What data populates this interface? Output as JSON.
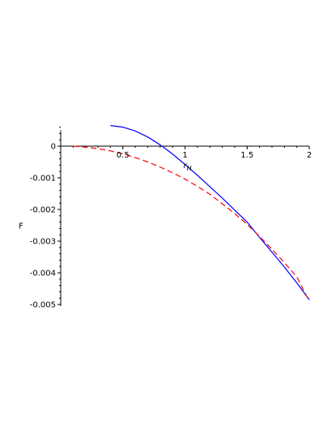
{
  "chart_data": {
    "type": "line",
    "title": "",
    "xlabel": "r",
    "xlabel_sub": "H",
    "ylabel": "F",
    "xlim": [
      0,
      2
    ],
    "ylim": [
      -0.005,
      0.0006
    ],
    "grid": false,
    "legend": "none",
    "x_ticks": [
      {
        "value": 0.5,
        "label": "0.5"
      },
      {
        "value": 1,
        "label": "1"
      },
      {
        "value": 1.5,
        "label": "1.5"
      },
      {
        "value": 2,
        "label": "2"
      }
    ],
    "y_ticks": [
      {
        "value": 0,
        "label": "0"
      },
      {
        "value": -0.001,
        "label": "-0.001"
      },
      {
        "value": -0.002,
        "label": "-0.002"
      },
      {
        "value": -0.003,
        "label": "-0.003"
      },
      {
        "value": -0.004,
        "label": "-0.004"
      },
      {
        "value": -0.005,
        "label": "-0.005"
      }
    ],
    "series": [
      {
        "color": "#0000ff",
        "style": "solid",
        "x": [
          0.4,
          0.5,
          0.6,
          0.7,
          0.8,
          0.85,
          0.9,
          1.0,
          1.1,
          1.2,
          1.3,
          1.4,
          1.5,
          1.6,
          1.7,
          1.8,
          1.9,
          2.0
        ],
        "y": [
          0.00065,
          0.0006,
          0.00048,
          0.00029,
          4e-05,
          -0.0001,
          -0.00025,
          -0.00058,
          -0.00092,
          -0.00128,
          -0.00164,
          -0.00202,
          -0.0024,
          -0.00288,
          -0.00335,
          -0.00382,
          -0.00432,
          -0.00485
        ]
      },
      {
        "color": "#ff0000",
        "style": "dashed",
        "x": [
          0.1,
          0.2,
          0.3,
          0.4,
          0.5,
          0.6,
          0.7,
          0.8,
          0.9,
          1.0,
          1.1,
          1.2,
          1.3,
          1.4,
          1.5,
          1.6,
          1.7,
          1.8,
          1.9,
          2.0
        ],
        "y": [
          0,
          -3e-05,
          -8e-05,
          -0.00015,
          -0.00024,
          -0.00036,
          -0.0005,
          -0.00066,
          -0.00084,
          -0.00104,
          -0.00127,
          -0.00152,
          -0.00182,
          -0.00213,
          -0.00247,
          -0.00285,
          -0.00326,
          -0.00368,
          -0.00413,
          -0.0049
        ]
      }
    ]
  }
}
